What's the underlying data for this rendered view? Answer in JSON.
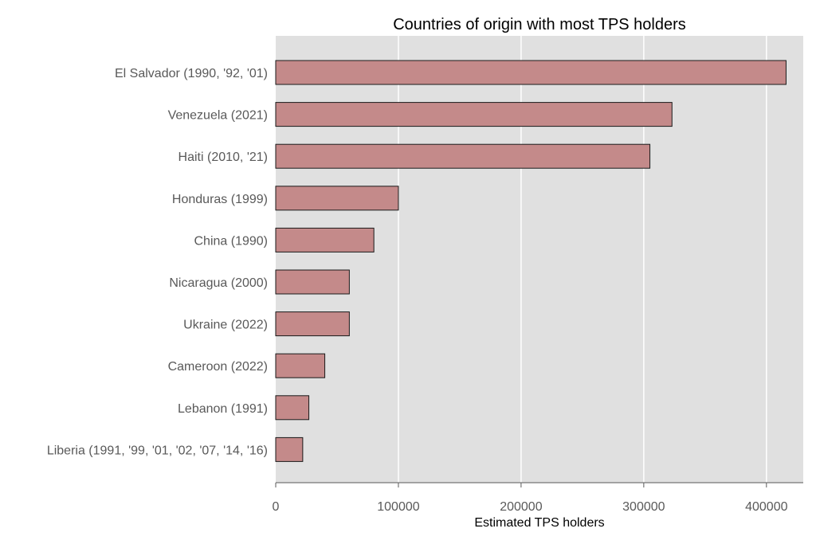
{
  "chart_data": {
    "type": "bar",
    "orientation": "horizontal",
    "title": "Countries of origin with most TPS holders",
    "xlabel": "Estimated TPS holders",
    "ylabel": "",
    "categories": [
      "El Salvador (1990, '92, '01)",
      "Venezuela (2021)",
      "Haiti (2010, '21)",
      "Honduras (1999)",
      "China (1990)",
      "Nicaragua (2000)",
      "Ukraine (2022)",
      "Cameroon (2022)",
      "Lebanon (1991)",
      "Liberia (1991, '99, '01, '02, '07, '14, '16)"
    ],
    "values": [
      416000,
      323000,
      305000,
      100000,
      80000,
      60000,
      60000,
      40000,
      27000,
      22000
    ],
    "xlim": [
      0,
      430000
    ],
    "xticks": [
      0,
      100000,
      200000,
      300000,
      400000
    ],
    "xtick_labels": [
      "0",
      "100000",
      "200000",
      "300000",
      "400000"
    ],
    "grid": true,
    "legend": "none",
    "colors": {
      "bar_fill": "#c48a8a",
      "bar_stroke": "#1a1a1a",
      "plot_background": "#e0e0e0",
      "gridline": "#ffffff",
      "text": "#595959",
      "title": "#000000"
    }
  }
}
